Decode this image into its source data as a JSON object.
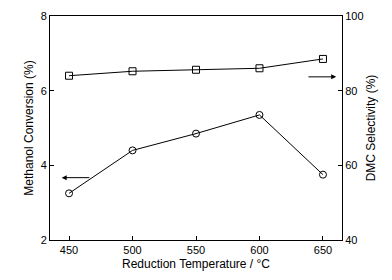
{
  "chart_data": {
    "type": "line",
    "x_label": "Reduction Temperature / °C",
    "y_label": "Methanol Conversion (%)",
    "y2_label": "DMC Selectivity (%)",
    "x": [
      450,
      500,
      550,
      600,
      650
    ],
    "series": [
      {
        "color": "#000000",
        "marker": "circle-open",
        "values": [
          3.25,
          4.4,
          4.85,
          5.35,
          3.75
        ]
      },
      {
        "color": "#000000",
        "marker": "square-open",
        "axis": "y2",
        "values": [
          84,
          85.2,
          85.6,
          86,
          88.5
        ]
      }
    ],
    "xlim": [
      435,
      665
    ],
    "xticks": [
      450,
      500,
      550,
      600,
      650
    ],
    "ylim": [
      2,
      8
    ],
    "yticks": [
      2,
      4,
      6,
      8
    ],
    "y2lim": [
      40,
      100
    ],
    "y2ticks": [
      40,
      60,
      80,
      100
    ],
    "grid": false
  }
}
